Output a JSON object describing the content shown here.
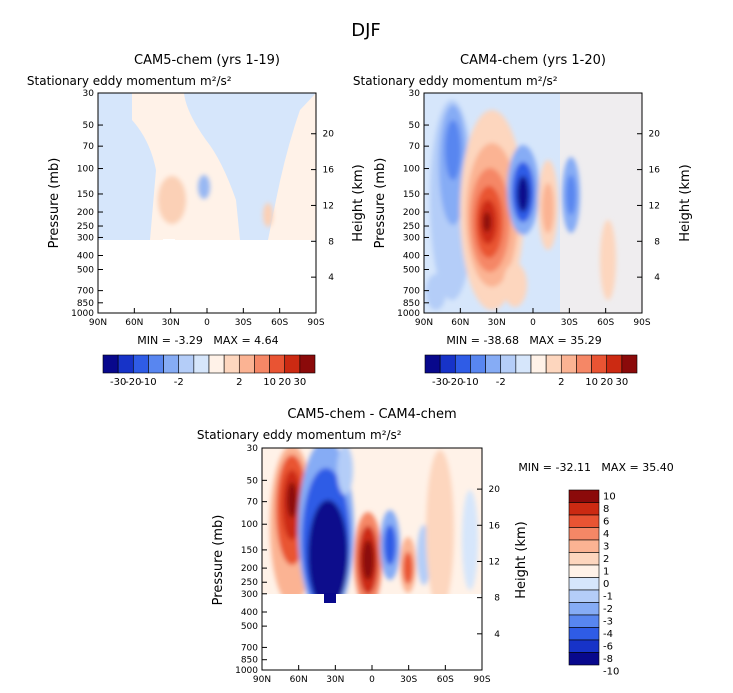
{
  "figure_title": "DJF",
  "units_label": "m²/s²",
  "chart_data": [
    {
      "type": "heatmap",
      "id": "p1",
      "title": "CAM5-chem (yrs 1-19)",
      "subtitle": "Stationary eddy momentum",
      "ylabel": "Pressure (mb)",
      "ylabel_right": "Height (km)",
      "x_ticks": [
        "90N",
        "60N",
        "30N",
        "0",
        "30S",
        "60S",
        "90S"
      ],
      "y_ticks": [
        "30",
        "50",
        "70",
        "100",
        "150",
        "200",
        "250",
        "300",
        "400",
        "500",
        "700",
        "850",
        "1000"
      ],
      "right_ticks": [
        "20",
        "16",
        "12",
        "8",
        "4"
      ],
      "stats": "MIN = -3.29   MAX = 4.64",
      "colorbar_labels": [
        "-30",
        "-20",
        "-10",
        "-2",
        "2",
        "10",
        "20",
        "30"
      ]
    },
    {
      "type": "heatmap",
      "id": "p2",
      "title": "CAM4-chem (yrs 1-20)",
      "subtitle": "Stationary eddy momentum",
      "ylabel": "Pressure (mb)",
      "ylabel_right": "Height (km)",
      "x_ticks": [
        "90N",
        "60N",
        "30N",
        "0",
        "30S",
        "60S",
        "90S"
      ],
      "y_ticks": [
        "30",
        "50",
        "70",
        "100",
        "150",
        "200",
        "250",
        "300",
        "400",
        "500",
        "700",
        "850",
        "1000"
      ],
      "right_ticks": [
        "20",
        "16",
        "12",
        "8",
        "4"
      ],
      "stats": "MIN = -38.68   MAX = 35.29",
      "colorbar_labels": [
        "-30",
        "-20",
        "-10",
        "-2",
        "2",
        "10",
        "20",
        "30"
      ]
    },
    {
      "type": "heatmap",
      "id": "p3",
      "title": "CAM5-chem - CAM4-chem",
      "subtitle": "Stationary eddy momentum",
      "ylabel": "Pressure (mb)",
      "ylabel_right": "Height (km)",
      "x_ticks": [
        "90N",
        "60N",
        "30N",
        "0",
        "30S",
        "60S",
        "90S"
      ],
      "y_ticks": [
        "30",
        "50",
        "70",
        "100",
        "150",
        "200",
        "250",
        "300",
        "400",
        "500",
        "700",
        "850",
        "1000"
      ],
      "right_ticks": [
        "20",
        "16",
        "12",
        "8",
        "4"
      ],
      "stats": "MIN = -32.11   MAX = 35.40",
      "colorbar_labels": [
        "10",
        "8",
        "6",
        "4",
        "3",
        "2",
        "1",
        "0",
        "-1",
        "-2",
        "-3",
        "-4",
        "-6",
        "-8",
        "-10"
      ]
    }
  ],
  "colors": {
    "scale": [
      "#08088c",
      "#1733c8",
      "#2f5ce6",
      "#5886f0",
      "#86acf5",
      "#b4cdf8",
      "#d6e6fb",
      "#fff2e8",
      "#fdd6be",
      "#fbb393",
      "#f58766",
      "#e95433",
      "#cc2a12",
      "#8b0a0a"
    ]
  }
}
